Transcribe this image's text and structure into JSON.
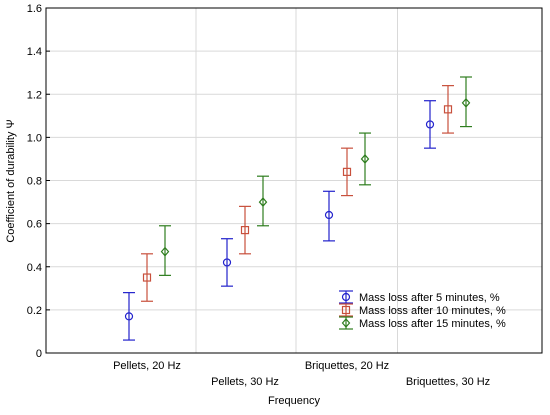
{
  "chart_data": {
    "type": "scatter",
    "subtype": "error-bars",
    "title": "",
    "xlabel": "Frequency",
    "ylabel": "Coefficient of durability Ψ",
    "ylim": [
      0,
      1.6
    ],
    "yticks": [
      "0",
      "0.2",
      "0.4",
      "0.6",
      "0.8",
      "1.0",
      "1.2",
      "1.4",
      "1.6"
    ],
    "categories": [
      "Pellets, 20 Hz",
      "Pellets, 30 Hz",
      "Briquettes, 20 Hz",
      "Briquettes, 30 Hz"
    ],
    "grid": true,
    "legend_position": "bottom-right",
    "series": [
      {
        "name": "Mass loss after 5 minutes, %",
        "color": "#2222cc",
        "marker": "circle",
        "values": [
          0.17,
          0.42,
          0.64,
          1.06
        ],
        "lower": [
          0.06,
          0.31,
          0.52,
          0.95
        ],
        "upper": [
          0.28,
          0.53,
          0.75,
          1.17
        ]
      },
      {
        "name": "Mass loss after 10 minutes, %",
        "color": "#c8503c",
        "marker": "square",
        "values": [
          0.35,
          0.57,
          0.84,
          1.13
        ],
        "lower": [
          0.24,
          0.46,
          0.73,
          1.02
        ],
        "upper": [
          0.46,
          0.68,
          0.95,
          1.24
        ]
      },
      {
        "name": "Mass loss after 15 minutes, %",
        "color": "#2e7d1e",
        "marker": "diamond",
        "values": [
          0.47,
          0.7,
          0.9,
          1.16
        ],
        "lower": [
          0.36,
          0.59,
          0.78,
          1.05
        ],
        "upper": [
          0.59,
          0.82,
          1.02,
          1.28
        ]
      }
    ]
  }
}
